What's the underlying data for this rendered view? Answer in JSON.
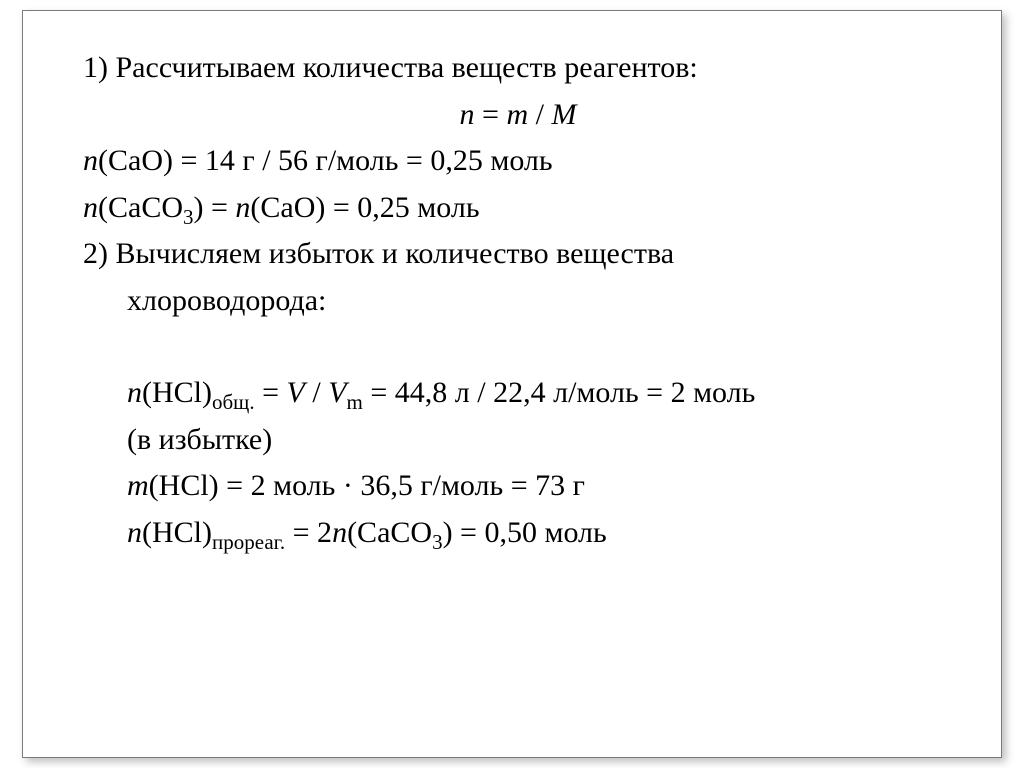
{
  "typography": {
    "font_family": "Times New Roman",
    "font_size_pt": 22,
    "color": "#000000",
    "background": "#ffffff",
    "border_color": "#7a7a7a"
  },
  "step1": {
    "heading_prefix": "1) ",
    "heading": "Рассчитываем количества веществ реагентов:",
    "formula_n": "n",
    "formula_eq": " = ",
    "formula_m": "m",
    "formula_div": " / ",
    "formula_M": "M",
    "cao_n": "n",
    "cao_open": "(CaO) = 14 г / 56 г/моль = 0,25 моль",
    "caco3_n1": "n",
    "caco3_l": "(CaCO",
    "caco3_sub": "3",
    "caco3_mid": ") = ",
    "caco3_n2": "n",
    "caco3_r": "(CaO) = 0,25 моль"
  },
  "step2": {
    "heading_prefix": "2) ",
    "heading_line1": "Вычисляем избыток и количество вещества",
    "heading_line2": "хлороводорода:",
    "hcl_total_n": "n",
    "hcl_total_l": "(HCl)",
    "hcl_total_sub": "общ.",
    "hcl_total_mid": " = ",
    "hcl_total_V": "V",
    "hcl_total_div": " / ",
    "hcl_total_Vm": "V",
    "hcl_total_Vm_sub": "m",
    "hcl_total_r": " = 44,8 л / 22,4 л/моль = 2 моль",
    "hcl_total_note": "(в избытке)",
    "hcl_mass_m": "m",
    "hcl_mass_r": "(HCl) = 2 моль · 36,5 г/моль = 73 г",
    "hcl_react_n": "n",
    "hcl_react_l": "(HCl)",
    "hcl_react_sub": "прореаг.",
    "hcl_react_mid": " = 2",
    "hcl_react_n2": "n",
    "hcl_react_caco3_l": "(CaCO",
    "hcl_react_caco3_sub": "3",
    "hcl_react_r": ") = 0,50 моль"
  }
}
